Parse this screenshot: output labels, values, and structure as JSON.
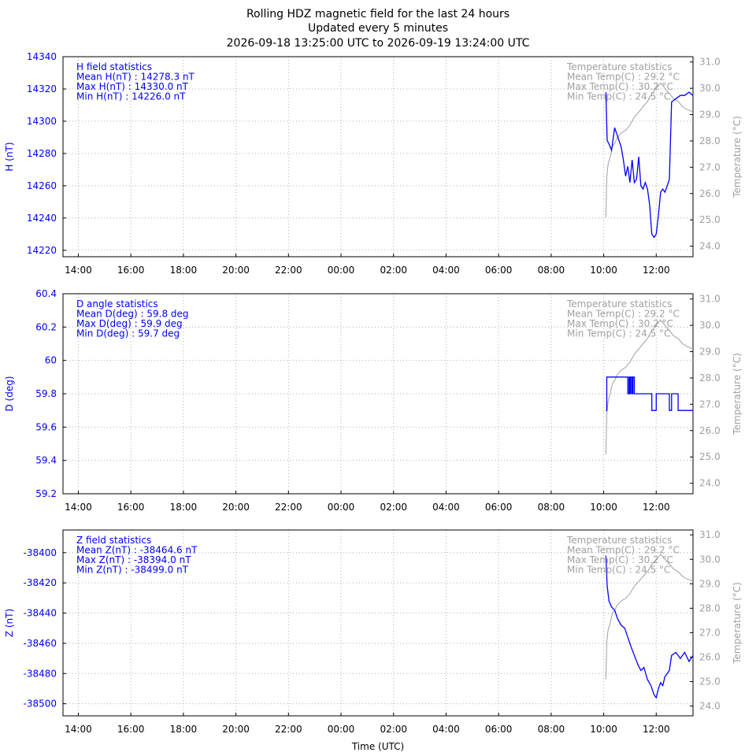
{
  "chart_data": {
    "type": "line",
    "title": [
      "Rolling HDZ magnetic field for the last 24 hours",
      "Updated every 5 minutes",
      "2026-09-18 13:25:00 UTC to 2026-09-19 13:24:00 UTC"
    ],
    "xlabel": "Time (UTC)",
    "x_range": [
      "2026-09-18 13:25",
      "2026-09-19 13:24"
    ],
    "x_ticks": [
      {
        "t": "2026-09-18 14:00",
        "label": "14:00"
      },
      {
        "t": "2026-09-18 16:00",
        "label": "16:00"
      },
      {
        "t": "2026-09-18 18:00",
        "label": "18:00"
      },
      {
        "t": "2026-09-18 20:00",
        "label": "20:00"
      },
      {
        "t": "2026-09-18 22:00",
        "label": "22:00"
      },
      {
        "t": "2026-09-19 00:00",
        "label": "00:00"
      },
      {
        "t": "2026-09-19 02:00",
        "label": "02:00"
      },
      {
        "t": "2026-09-19 04:00",
        "label": "04:00"
      },
      {
        "t": "2026-09-19 06:00",
        "label": "06:00"
      },
      {
        "t": "2026-09-19 08:00",
        "label": "08:00"
      },
      {
        "t": "2026-09-19 10:00",
        "label": "10:00"
      },
      {
        "t": "2026-09-19 12:00",
        "label": "12:00"
      }
    ],
    "grid": true,
    "colors": {
      "field": "#0000ff",
      "temperature": "#a0a0a0",
      "axis": "#000000"
    },
    "temperature_axis": {
      "label": "Temperature (°C)",
      "ticks": [
        "24.0",
        "25.0",
        "26.0",
        "27.0",
        "28.0",
        "29.0",
        "30.0",
        "31.0"
      ]
    },
    "temperature": [
      {
        "t": "2026-09-19 10:05",
        "v": 25.1
      },
      {
        "t": "2026-09-19 10:07",
        "v": 26.6
      },
      {
        "t": "2026-09-19 10:10",
        "v": 27.1
      },
      {
        "t": "2026-09-19 10:15",
        "v": 27.4
      },
      {
        "t": "2026-09-19 10:20",
        "v": 27.8
      },
      {
        "t": "2026-09-19 10:25",
        "v": 27.9
      },
      {
        "t": "2026-09-19 10:30",
        "v": 28.1
      },
      {
        "t": "2026-09-19 10:40",
        "v": 28.3
      },
      {
        "t": "2026-09-19 10:50",
        "v": 28.4
      },
      {
        "t": "2026-09-19 11:00",
        "v": 28.6
      },
      {
        "t": "2026-09-19 11:10",
        "v": 28.9
      },
      {
        "t": "2026-09-19 11:20",
        "v": 29.1
      },
      {
        "t": "2026-09-19 11:30",
        "v": 29.3
      },
      {
        "t": "2026-09-19 11:40",
        "v": 29.5
      },
      {
        "t": "2026-09-19 11:50",
        "v": 29.8
      },
      {
        "t": "2026-09-19 12:00",
        "v": 30.0
      },
      {
        "t": "2026-09-19 12:10",
        "v": 30.2
      },
      {
        "t": "2026-09-19 12:20",
        "v": 30.0
      },
      {
        "t": "2026-09-19 12:30",
        "v": 29.8
      },
      {
        "t": "2026-09-19 12:40",
        "v": 29.6
      },
      {
        "t": "2026-09-19 12:50",
        "v": 29.5
      },
      {
        "t": "2026-09-19 13:00",
        "v": 29.3
      },
      {
        "t": "2026-09-19 13:10",
        "v": 29.2
      },
      {
        "t": "2026-09-19 13:24",
        "v": 29.1
      }
    ],
    "panels": [
      {
        "ylabel": "H (nT)",
        "ylim": [
          14216,
          14340
        ],
        "yticks": [
          14220,
          14240,
          14260,
          14280,
          14300,
          14320,
          14340
        ],
        "ytick_labels": [
          "14220",
          "14240",
          "14260",
          "14280",
          "14300",
          "14320",
          "14340"
        ],
        "stats": [
          "H field statistics",
          "Mean H(nT) : 14278.3 nT",
          "Max H(nT) : 14330.0 nT",
          "Min H(nT) : 14226.0 nT"
        ],
        "temp_stats": [
          "Temperature statistics",
          "Mean Temp(C) : 29.2 °C",
          "Max Temp(C) : 30.2 °C",
          "Min Temp(C) : 24.5 °C"
        ],
        "series": [
          {
            "t": "2026-09-19 10:05",
            "v": 14318
          },
          {
            "t": "2026-09-19 10:08",
            "v": 14288
          },
          {
            "t": "2026-09-19 10:12",
            "v": 14286
          },
          {
            "t": "2026-09-19 10:18",
            "v": 14282
          },
          {
            "t": "2026-09-19 10:25",
            "v": 14296
          },
          {
            "t": "2026-09-19 10:30",
            "v": 14292
          },
          {
            "t": "2026-09-19 10:35",
            "v": 14288
          },
          {
            "t": "2026-09-19 10:40",
            "v": 14284
          },
          {
            "t": "2026-09-19 10:45",
            "v": 14276
          },
          {
            "t": "2026-09-19 10:50",
            "v": 14266
          },
          {
            "t": "2026-09-19 10:55",
            "v": 14272
          },
          {
            "t": "2026-09-19 11:00",
            "v": 14262
          },
          {
            "t": "2026-09-19 11:05",
            "v": 14276
          },
          {
            "t": "2026-09-19 11:10",
            "v": 14262
          },
          {
            "t": "2026-09-19 11:15",
            "v": 14264
          },
          {
            "t": "2026-09-19 11:20",
            "v": 14278
          },
          {
            "t": "2026-09-19 11:25",
            "v": 14260
          },
          {
            "t": "2026-09-19 11:30",
            "v": 14258
          },
          {
            "t": "2026-09-19 11:35",
            "v": 14262
          },
          {
            "t": "2026-09-19 11:40",
            "v": 14258
          },
          {
            "t": "2026-09-19 11:45",
            "v": 14248
          },
          {
            "t": "2026-09-19 11:50",
            "v": 14230
          },
          {
            "t": "2026-09-19 11:55",
            "v": 14228
          },
          {
            "t": "2026-09-19 12:00",
            "v": 14230
          },
          {
            "t": "2026-09-19 12:05",
            "v": 14242
          },
          {
            "t": "2026-09-19 12:10",
            "v": 14256
          },
          {
            "t": "2026-09-19 12:15",
            "v": 14258
          },
          {
            "t": "2026-09-19 12:20",
            "v": 14256
          },
          {
            "t": "2026-09-19 12:25",
            "v": 14260
          },
          {
            "t": "2026-09-19 12:30",
            "v": 14264
          },
          {
            "t": "2026-09-19 12:35",
            "v": 14312
          },
          {
            "t": "2026-09-19 12:45",
            "v": 14314
          },
          {
            "t": "2026-09-19 12:55",
            "v": 14316
          },
          {
            "t": "2026-09-19 13:05",
            "v": 14316
          },
          {
            "t": "2026-09-19 13:15",
            "v": 14318
          },
          {
            "t": "2026-09-19 13:24",
            "v": 14316
          }
        ]
      },
      {
        "ylabel": "D (deg)",
        "ylim": [
          59.2,
          60.4
        ],
        "yticks": [
          59.2,
          59.4,
          59.6,
          59.8,
          60.0,
          60.2,
          60.4
        ],
        "ytick_labels": [
          "59.2",
          "59.4",
          "59.6",
          "59.8",
          "60",
          "60.2",
          "60.4"
        ],
        "stats": [
          "D angle statistics",
          "Mean D(deg) : 59.8 deg",
          "Max D(deg) : 59.9 deg",
          "Min D(deg) : 59.7 deg"
        ],
        "temp_stats": [
          "Temperature statistics",
          "Mean Temp(C) : 29.2 °C",
          "Max Temp(C) : 30.2 °C",
          "Min Temp(C) : 24.5 °C"
        ],
        "step": true,
        "series": [
          {
            "t": "2026-09-19 10:05",
            "v": 59.7
          },
          {
            "t": "2026-09-19 10:07",
            "v": 59.9
          },
          {
            "t": "2026-09-19 10:55",
            "v": 59.8
          },
          {
            "t": "2026-09-19 10:58",
            "v": 59.9
          },
          {
            "t": "2026-09-19 11:00",
            "v": 59.8
          },
          {
            "t": "2026-09-19 11:02",
            "v": 59.9
          },
          {
            "t": "2026-09-19 11:05",
            "v": 59.8
          },
          {
            "t": "2026-09-19 11:07",
            "v": 59.9
          },
          {
            "t": "2026-09-19 11:10",
            "v": 59.8
          },
          {
            "t": "2026-09-19 11:50",
            "v": 59.7
          },
          {
            "t": "2026-09-19 12:00",
            "v": 59.8
          },
          {
            "t": "2026-09-19 12:30",
            "v": 59.7
          },
          {
            "t": "2026-09-19 12:35",
            "v": 59.8
          },
          {
            "t": "2026-09-19 12:50",
            "v": 59.7
          },
          {
            "t": "2026-09-19 13:24",
            "v": 59.7
          }
        ]
      },
      {
        "ylabel": "Z (nT)",
        "ylim": [
          -38508,
          -38385
        ],
        "yticks": [
          -38500,
          -38480,
          -38460,
          -38440,
          -38420,
          -38400
        ],
        "ytick_labels": [
          "-38500",
          "-38480",
          "-38460",
          "-38440",
          "-38420",
          "-38400"
        ],
        "stats": [
          "Z field statistics",
          "Mean Z(nT) : -38464.6 nT",
          "Max Z(nT) : -38394.0 nT",
          "Min Z(nT) : -38499.0 nT"
        ],
        "temp_stats": [
          "Temperature statistics",
          "Mean Temp(C) : 29.2 °C",
          "Max Temp(C) : 30.2 °C",
          "Min Temp(C) : 24.5 °C"
        ],
        "series": [
          {
            "t": "2026-09-19 10:05",
            "v": -38402
          },
          {
            "t": "2026-09-19 10:08",
            "v": -38422
          },
          {
            "t": "2026-09-19 10:12",
            "v": -38432
          },
          {
            "t": "2026-09-19 10:18",
            "v": -38436
          },
          {
            "t": "2026-09-19 10:25",
            "v": -38438
          },
          {
            "t": "2026-09-19 10:32",
            "v": -38444
          },
          {
            "t": "2026-09-19 10:40",
            "v": -38448
          },
          {
            "t": "2026-09-19 10:48",
            "v": -38450
          },
          {
            "t": "2026-09-19 10:55",
            "v": -38456
          },
          {
            "t": "2026-09-19 11:02",
            "v": -38462
          },
          {
            "t": "2026-09-19 11:10",
            "v": -38468
          },
          {
            "t": "2026-09-19 11:18",
            "v": -38474
          },
          {
            "t": "2026-09-19 11:25",
            "v": -38478
          },
          {
            "t": "2026-09-19 11:32",
            "v": -38476
          },
          {
            "t": "2026-09-19 11:40",
            "v": -38484
          },
          {
            "t": "2026-09-19 11:48",
            "v": -38488
          },
          {
            "t": "2026-09-19 11:55",
            "v": -38494
          },
          {
            "t": "2026-09-19 12:00",
            "v": -38496
          },
          {
            "t": "2026-09-19 12:05",
            "v": -38490
          },
          {
            "t": "2026-09-19 12:10",
            "v": -38486
          },
          {
            "t": "2026-09-19 12:15",
            "v": -38488
          },
          {
            "t": "2026-09-19 12:20",
            "v": -38482
          },
          {
            "t": "2026-09-19 12:25",
            "v": -38480
          },
          {
            "t": "2026-09-19 12:30",
            "v": -38478
          },
          {
            "t": "2026-09-19 12:35",
            "v": -38468
          },
          {
            "t": "2026-09-19 12:45",
            "v": -38466
          },
          {
            "t": "2026-09-19 12:55",
            "v": -38470
          },
          {
            "t": "2026-09-19 13:05",
            "v": -38466
          },
          {
            "t": "2026-09-19 13:15",
            "v": -38472
          },
          {
            "t": "2026-09-19 13:24",
            "v": -38468
          }
        ]
      }
    ]
  }
}
